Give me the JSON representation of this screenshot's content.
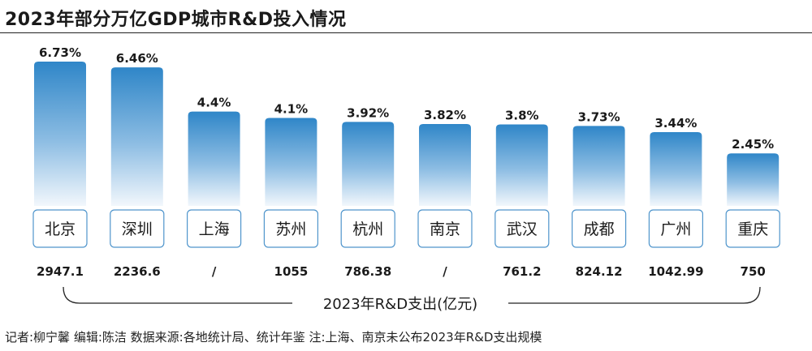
{
  "title": "2023年部分万亿GDP城市R&D投入情况",
  "footer": "记者:柳宁馨  编辑:陈洁  数据来源:各地统计局、统计年鉴  注:上海、南京未公布2023年R&D支出规模",
  "colors": {
    "bar_top": "#2f86c8",
    "bar_bottom": "#f2f7fc",
    "label_box_border": "#4f95cc",
    "text": "#1a1a1a",
    "bracket": "#222222"
  },
  "chart_data": {
    "type": "bar",
    "title": "2023年部分万亿GDP城市R&D投入情况",
    "categories": [
      "北京",
      "深圳",
      "上海",
      "苏州",
      "杭州",
      "南京",
      "武汉",
      "成都",
      "广州",
      "重庆"
    ],
    "values": [
      6.73,
      6.46,
      4.4,
      4.1,
      3.92,
      3.82,
      3.8,
      3.73,
      3.44,
      2.45
    ],
    "value_labels": [
      "6.73%",
      "6.46%",
      "4.4%",
      "4.1%",
      "3.92%",
      "3.82%",
      "3.8%",
      "3.73%",
      "3.44%",
      "2.45%"
    ],
    "unit": "%",
    "ylim": [
      0,
      6.73
    ],
    "grid": false,
    "secondary_row": {
      "label": "2023年R&D支出(亿元)",
      "values": [
        "2947.1",
        "2236.6",
        "/",
        "1055",
        "786.38",
        "/",
        "761.2",
        "824.12",
        "1042.99",
        "750"
      ]
    }
  }
}
